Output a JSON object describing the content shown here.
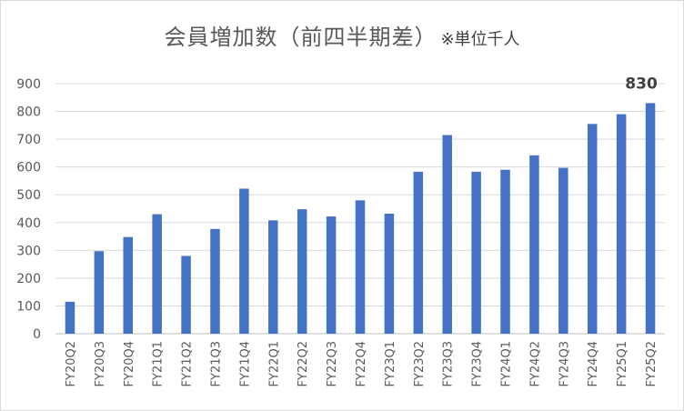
{
  "chart_data": {
    "type": "bar",
    "title": "会員増加数（前四半期差）",
    "subtitle": "※単位千人",
    "categories": [
      "FY20Q2",
      "FY20Q3",
      "FY20Q4",
      "FY21Q1",
      "FY21Q2",
      "FY21Q3",
      "FY21Q4",
      "FY22Q1",
      "FY22Q2",
      "FY22Q3",
      "FY22Q4",
      "FY23Q1",
      "FY23Q2",
      "FY23Q3",
      "FY23Q4",
      "FY24Q1",
      "FY24Q2",
      "FY24Q3",
      "FY24Q4",
      "FY25Q1",
      "FY25Q2"
    ],
    "values": [
      115,
      297,
      348,
      430,
      280,
      377,
      522,
      408,
      448,
      422,
      480,
      432,
      583,
      715,
      583,
      590,
      642,
      597,
      755,
      790,
      830
    ],
    "ylim": [
      0,
      900
    ],
    "yticks": [
      0,
      100,
      200,
      300,
      400,
      500,
      600,
      700,
      800,
      900
    ],
    "grid": true,
    "bar_color": "#4472C4",
    "data_labels": [
      {
        "index": 20,
        "text": "830"
      }
    ]
  }
}
